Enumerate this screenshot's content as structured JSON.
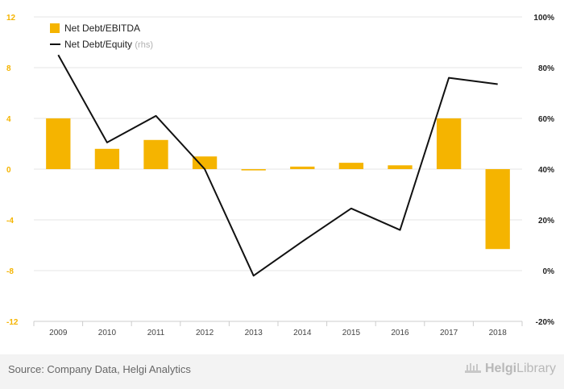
{
  "chart_data": {
    "type": "bar+line",
    "categories": [
      "2009",
      "2010",
      "2011",
      "2012",
      "2013",
      "2014",
      "2015",
      "2016",
      "2017",
      "2018"
    ],
    "series": [
      {
        "name": "Net Debt/EBITDA",
        "type": "bar",
        "axis": "left",
        "color": "#f5b400",
        "values": [
          4.0,
          1.6,
          2.3,
          1.0,
          -0.1,
          0.2,
          0.5,
          0.3,
          4.0,
          -6.3
        ]
      },
      {
        "name": "Net Debt/Equity",
        "type": "line",
        "axis": "right",
        "color": "#111111",
        "values": [
          85,
          50.5,
          61,
          40,
          -2,
          11.5,
          24.5,
          16,
          76,
          73.5
        ]
      }
    ],
    "legend": [
      {
        "label": "Net Debt/EBITDA",
        "suffix": ""
      },
      {
        "label": "Net Debt/Equity",
        "suffix": "(rhs)"
      }
    ],
    "y_left": {
      "min": -12,
      "max": 12,
      "ticks": [
        12,
        8,
        4,
        0,
        -4,
        -8,
        -12
      ],
      "tick_labels": [
        "12",
        "8",
        "4",
        "0",
        "-4",
        "-8",
        "-12"
      ],
      "color": "#f5b400"
    },
    "y_right": {
      "min": -20,
      "max": 100,
      "ticks": [
        100,
        80,
        60,
        40,
        20,
        0,
        -20
      ],
      "tick_labels": [
        "100%",
        "80%",
        "60%",
        "40%",
        "20%",
        "0%",
        "-20%"
      ]
    },
    "grid": true,
    "legend_position": "top-left"
  },
  "footer": {
    "source": "Source: Company Data, Helgi Analytics",
    "brand_bold": "Helgi",
    "brand_light": "Library"
  }
}
